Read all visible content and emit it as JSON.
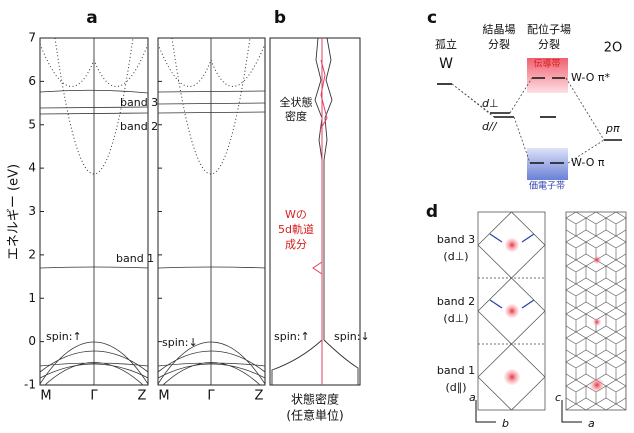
{
  "panel_labels": [
    "a",
    "b",
    "c",
    "d"
  ],
  "panel_a": {
    "ylabel": "エネルギー (eV)",
    "ylim": [
      -1,
      7
    ],
    "yticks": [
      -1,
      0,
      1,
      2,
      3,
      4,
      5,
      6,
      7
    ],
    "kpoints": [
      "M",
      "Γ",
      "Z"
    ],
    "band_labels": [
      "band 3",
      "band 2",
      "band 1"
    ],
    "spin_up": "spin:↑",
    "spin_down": "spin:↓"
  },
  "panel_b": {
    "total_dos": [
      "全状態",
      "密度"
    ],
    "w5d": [
      "Wの",
      "5d軌道",
      "成分"
    ],
    "spin_up": "spin:↑",
    "spin_down": "spin:↓",
    "xlabel": [
      "状態密度",
      "(任意単位)"
    ]
  },
  "panel_c": {
    "isolated": [
      "孤立",
      "W"
    ],
    "crystal_field": [
      "結晶場",
      "分裂"
    ],
    "ligand_field": [
      "配位子場",
      "分裂"
    ],
    "oxygen": "2O",
    "conduction_band": "伝導帯",
    "pi_star": "W-O π*",
    "d_perp": "d⊥",
    "d_par": "d//",
    "p_pi": "pπ",
    "valence_band": "価電子帯",
    "pi": "W-O π"
  },
  "panel_d": {
    "bands": [
      {
        "name": "band 3",
        "orbital": "(d⊥)"
      },
      {
        "name": "band 2",
        "orbital": "(d⊥)"
      },
      {
        "name": "band 1",
        "orbital": "(d∥)"
      }
    ],
    "axes_left": [
      "a",
      "b"
    ],
    "axes_right": [
      "c",
      "a"
    ]
  }
}
